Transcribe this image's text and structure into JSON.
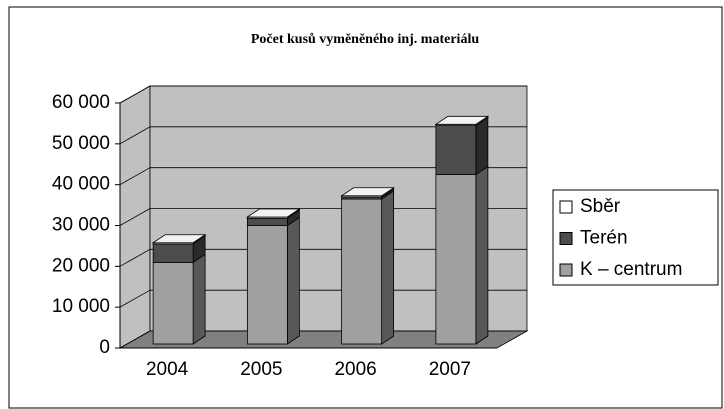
{
  "chart_data": {
    "type": "bar3d_stacked",
    "title": "Počet kusů vyměněného inj. materiálu",
    "categories": [
      "2004",
      "2005",
      "2006",
      "2007"
    ],
    "series": [
      {
        "name": "Sběr",
        "color": "#ffffff",
        "values": [
          300,
          300,
          300,
          300
        ]
      },
      {
        "name": "Terén",
        "color": "#4d4d4d",
        "values": [
          4500,
          1800,
          500,
          12000
        ]
      },
      {
        "name": "K – centrum",
        "color": "#a0a0a0",
        "values": [
          20000,
          29000,
          35500,
          41500
        ]
      }
    ],
    "ylim": [
      0,
      60000
    ],
    "yticks": [
      {
        "value": 0,
        "label": "0"
      },
      {
        "value": 10000,
        "label": "10 000"
      },
      {
        "value": 20000,
        "label": "20 000"
      },
      {
        "value": 30000,
        "label": "30 000"
      },
      {
        "value": 40000,
        "label": "40 000"
      },
      {
        "value": 50000,
        "label": "50 000"
      },
      {
        "value": 60000,
        "label": "60 000"
      }
    ],
    "grid": true
  }
}
